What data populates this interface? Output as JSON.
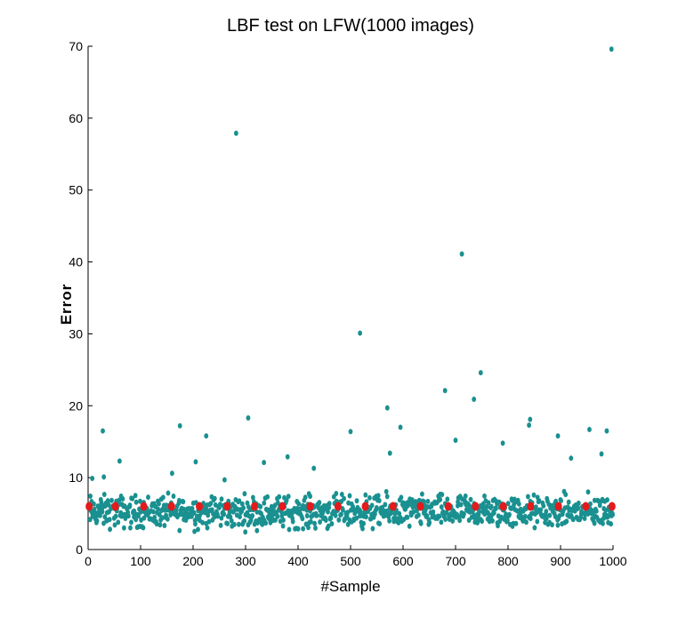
{
  "chart_data": {
    "type": "scatter",
    "title": "LBF test on LFW(1000 images)",
    "xlabel": "#Sample",
    "ylabel": "Error",
    "xlim": [
      0,
      1000
    ],
    "ylim": [
      0,
      70
    ],
    "xticks": [
      0,
      100,
      200,
      300,
      400,
      500,
      600,
      700,
      800,
      900,
      1000
    ],
    "yticks": [
      0,
      10,
      20,
      30,
      40,
      50,
      60,
      70
    ],
    "grid": false,
    "legend": "none",
    "colors": {
      "per_sample": "#1a9090",
      "mean_markers": "#e41a1c"
    },
    "series": [
      {
        "style": "teal-dots",
        "points": [
          [
            8,
            9.9
          ],
          [
            28,
            16.5
          ],
          [
            30,
            10.1
          ],
          [
            60,
            12.3
          ],
          [
            160,
            10.6
          ],
          [
            175,
            17.2
          ],
          [
            205,
            12.2
          ],
          [
            225,
            15.8
          ],
          [
            260,
            9.7
          ],
          [
            282,
            57.9
          ],
          [
            305,
            18.3
          ],
          [
            335,
            12.1
          ],
          [
            380,
            12.9
          ],
          [
            430,
            11.3
          ],
          [
            500,
            16.4
          ],
          [
            518,
            30.1
          ],
          [
            570,
            19.7
          ],
          [
            575,
            13.4
          ],
          [
            595,
            17.0
          ],
          [
            680,
            22.1
          ],
          [
            700,
            15.2
          ],
          [
            712,
            41.1
          ],
          [
            735,
            20.9
          ],
          [
            748,
            24.6
          ],
          [
            790,
            14.8
          ],
          [
            840,
            17.3
          ],
          [
            842,
            18.1
          ],
          [
            895,
            15.8
          ],
          [
            920,
            12.7
          ],
          [
            955,
            16.7
          ],
          [
            978,
            13.3
          ],
          [
            988,
            16.5
          ],
          [
            997,
            69.6
          ]
        ]
      },
      {
        "style": "red-markers",
        "points": [
          [
            2,
            6.0
          ],
          [
            52,
            6.0
          ],
          [
            106,
            6.0
          ],
          [
            159,
            6.0
          ],
          [
            212,
            6.0
          ],
          [
            265,
            6.0
          ],
          [
            317,
            6.0
          ],
          [
            370,
            6.0
          ],
          [
            423,
            6.0
          ],
          [
            476,
            6.0
          ],
          [
            528,
            6.0
          ],
          [
            581,
            6.0
          ],
          [
            633,
            6.0
          ],
          [
            686,
            6.0
          ],
          [
            738,
            6.0
          ],
          [
            791,
            6.0
          ],
          [
            843,
            6.0
          ],
          [
            896,
            6.0
          ],
          [
            948,
            6.0
          ],
          [
            998,
            6.0
          ]
        ]
      }
    ],
    "bulk_band": {
      "x_range": [
        0,
        1000
      ],
      "y_range": [
        2.0,
        8.5
      ],
      "count": 960
    }
  }
}
